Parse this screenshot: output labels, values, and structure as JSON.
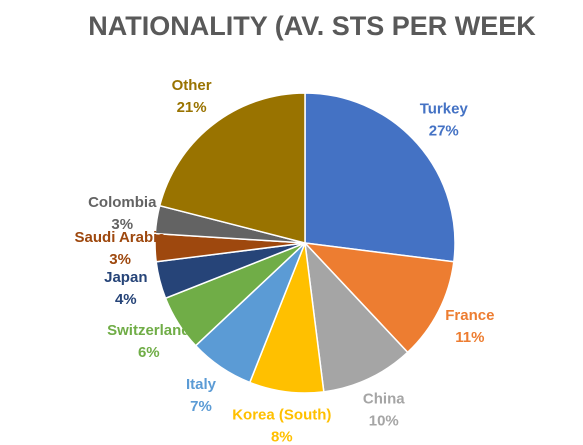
{
  "chart_data": {
    "type": "pie",
    "title": "NATIONALITY (AV. STS PER WEEK",
    "categories": [
      "Turkey",
      "France",
      "China",
      "Korea (South)",
      "Italy",
      "Switzerland",
      "Japan",
      "Saudi Arabia",
      "Colombia",
      "Other"
    ],
    "values": [
      27,
      11,
      10,
      8,
      7,
      6,
      4,
      3,
      3,
      21
    ],
    "value_labels": [
      "27%",
      "11%",
      "10%",
      "8%",
      "7%",
      "6%",
      "4%",
      "3%",
      "3%",
      "21%"
    ],
    "colors": [
      "#4472c4",
      "#ed7d31",
      "#a5a5a5",
      "#ffc000",
      "#5b9bd5",
      "#70ad47",
      "#264478",
      "#9e480e",
      "#636363",
      "#997300"
    ]
  }
}
